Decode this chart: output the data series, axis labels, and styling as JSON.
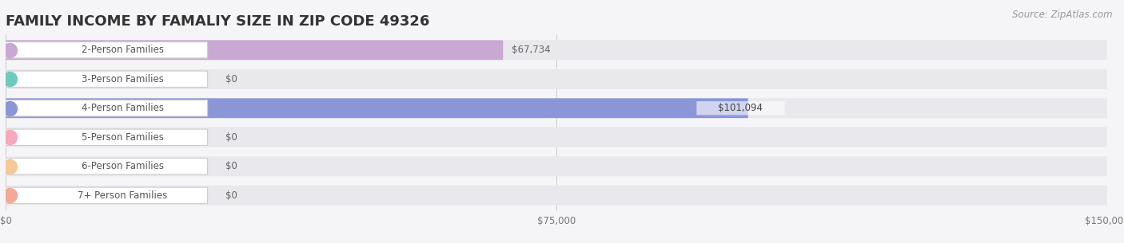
{
  "title": "FAMILY INCOME BY FAMALIY SIZE IN ZIP CODE 49326",
  "source": "Source: ZipAtlas.com",
  "categories": [
    "2-Person Families",
    "3-Person Families",
    "4-Person Families",
    "5-Person Families",
    "6-Person Families",
    "7+ Person Families"
  ],
  "values": [
    67734,
    0,
    101094,
    0,
    0,
    0
  ],
  "bar_colors": [
    "#c9a8d4",
    "#6dcbbc",
    "#8b96d9",
    "#f7a8bc",
    "#f5c897",
    "#f5a898"
  ],
  "pill_colors": [
    "#e2d0eb",
    "#aee5df",
    "#bec4ed",
    "#fac8d8",
    "#f9dbb0",
    "#fac8c0"
  ],
  "bar_labels": [
    "$67,734",
    "$0",
    "$101,094",
    "$0",
    "$0",
    "$0"
  ],
  "value_label_inside": [
    false,
    false,
    true,
    false,
    false,
    false
  ],
  "xlim": [
    0,
    150000
  ],
  "xticklabels": [
    "$0",
    "$75,000",
    "$150,000"
  ],
  "xtick_vals": [
    0,
    75000,
    150000
  ],
  "background_color": "#f5f5f8",
  "bar_bg_color": "#e8e8ed",
  "title_fontsize": 13,
  "label_fontsize": 8.5,
  "value_fontsize": 8.5,
  "source_fontsize": 8.5
}
